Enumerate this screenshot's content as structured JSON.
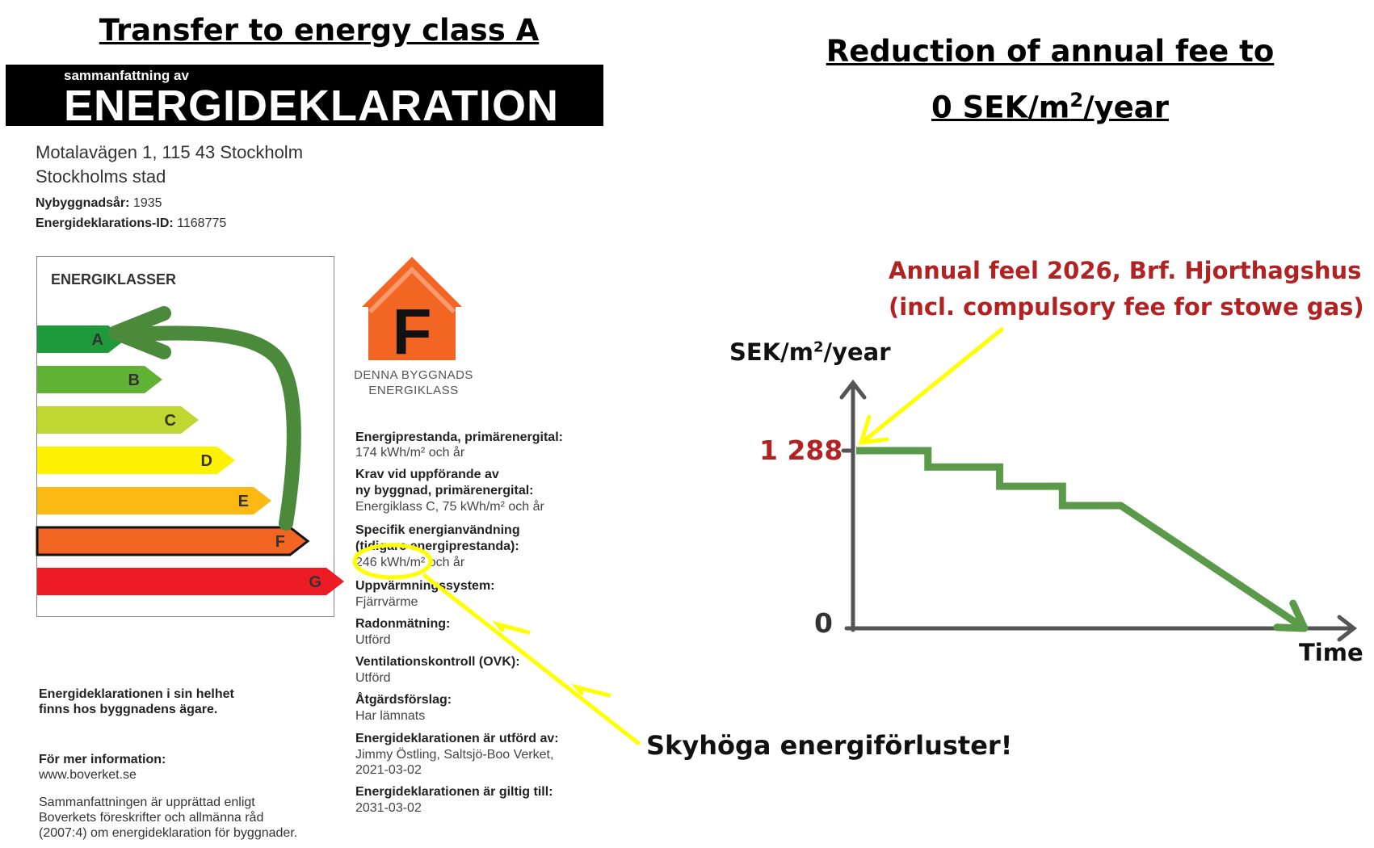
{
  "left_heading": "Transfer to energy class A",
  "right_heading": {
    "line1": "Reduction of annual fee to",
    "line2_prefix": "0 SEK/m",
    "line2_sup": "2",
    "line2_suffix": "/year"
  },
  "declaration": {
    "banner_small": "sammanfattning av",
    "banner_big": "ENERGIDEKLARATION",
    "address_line1": "Motalavägen 1, 115 43 Stockholm",
    "address_line2": "Stockholms stad",
    "build_year_label": "Nybyggnadsår:",
    "build_year_value": "1935",
    "id_label": "Energideklarations-ID:",
    "id_value": "1168775",
    "scale_title": "ENERGIKLASSER",
    "classes": [
      {
        "letter": "A",
        "color": "#1e9a3c"
      },
      {
        "letter": "B",
        "color": "#5fb234"
      },
      {
        "letter": "C",
        "color": "#bfd730"
      },
      {
        "letter": "D",
        "color": "#fff200"
      },
      {
        "letter": "E",
        "color": "#fdb913"
      },
      {
        "letter": "F",
        "color": "#f26522"
      },
      {
        "letter": "G",
        "color": "#ed1c24"
      }
    ],
    "highlighted_class": "F",
    "house_letter": "F",
    "house_color": "#f26522",
    "house_caption_line1": "DENNA BYGGNADS",
    "house_caption_line2": "ENERGIKLASS",
    "info": [
      {
        "label": "Energiprestanda, primärenergital:",
        "value": "174 kWh/m² och år"
      },
      {
        "label": "Krav vid uppförande av",
        "label2": "ny byggnad, primärenergital:",
        "value": "Energiklass C, 75 kWh/m² och år"
      },
      {
        "label": "Specifik energianvändning",
        "label2": "(tidigare energiprestanda):",
        "value": "246 kWh/m² och år"
      },
      {
        "label": "Uppvärmningssystem:",
        "value": "Fjärrvärme"
      },
      {
        "label": "Radonmätning:",
        "value": "Utförd"
      },
      {
        "label": "Ventilationskontroll (OVK):",
        "value": "Utförd"
      },
      {
        "label": "Åtgärdsförslag:",
        "value": "Har lämnats"
      },
      {
        "label": "Energideklarationen är utförd av:",
        "value": "Jimmy Östling, Saltsjö-Boo Verket,",
        "value2": "2021-03-02"
      },
      {
        "label": "Energideklarationen är giltig till:",
        "value": "2031-03-02"
      }
    ],
    "note1_line1": "Energideklarationen i sin helhet",
    "note1_line2": "finns hos byggnadens ägare.",
    "note2_label": "För mer information:",
    "note2_value": "www.boverket.se",
    "note3_line1": "Sammanfattningen är upprättad enligt",
    "note3_line2": "Boverkets föreskrifter och allmänna råd",
    "note3_line3": "(2007:4) om energideklaration för byggnader."
  },
  "callout_text": "Skyhöga energiförluster!",
  "accent_colors": {
    "green_arrow": "#4a8a3a",
    "callout_yellow": "#ffff00",
    "value_red": "#b22222"
  },
  "chart_data": {
    "type": "line",
    "title": "",
    "annotation_line1": "Annual feel 2026, Brf. Hjorthagshus",
    "annotation_line2": "(incl. compulsory fee for stowe gas)",
    "ylabel_prefix": "SEK/m",
    "ylabel_sup": "2",
    "ylabel_suffix": "/year",
    "xlabel": "Time",
    "y_tick_labels": [
      "1 288",
      "0"
    ],
    "y_ticks": [
      1288,
      0
    ],
    "ylim": [
      0,
      1288
    ],
    "series": [
      {
        "color": "#5a9a48",
        "x": [
          0,
          0.16,
          0.16,
          0.32,
          0.32,
          0.46,
          0.46,
          0.59,
          1.0
        ],
        "y": [
          1288,
          1288,
          1170,
          1170,
          1030,
          1030,
          890,
          890,
          0
        ]
      }
    ]
  }
}
